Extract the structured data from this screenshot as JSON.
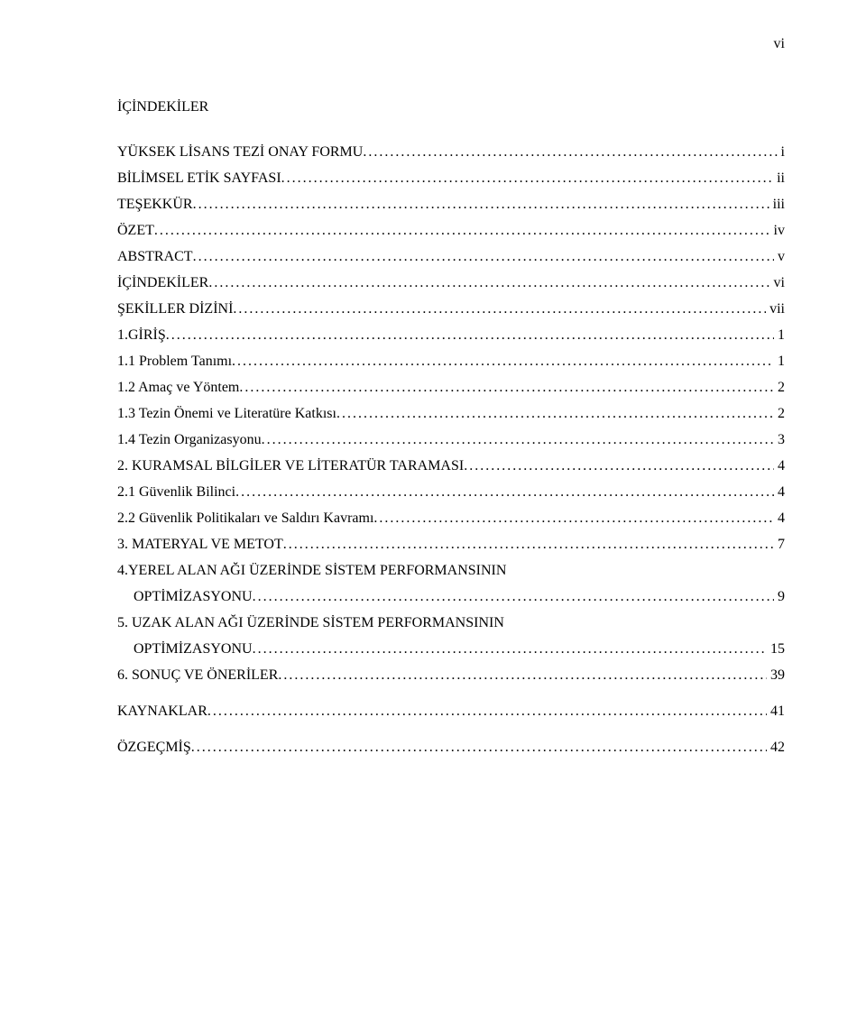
{
  "pageNumber": "vi",
  "title": "İÇİNDEKİLER",
  "entries": [
    {
      "label": "YÜKSEK LİSANS TEZİ ONAY FORMU",
      "page": "i",
      "indent": false,
      "gap": "none"
    },
    {
      "label": "BİLİMSEL ETİK SAYFASI",
      "page": "ii",
      "indent": false,
      "gap": "none"
    },
    {
      "label": "TEŞEKKÜR",
      "page": "iii",
      "indent": false,
      "gap": "none"
    },
    {
      "label": "ÖZET ",
      "page": "iv",
      "indent": false,
      "gap": "none"
    },
    {
      "label": "ABSTRACT ",
      "page": "v",
      "indent": false,
      "gap": "none"
    },
    {
      "label": "İÇİNDEKİLER",
      "page": "vi",
      "indent": false,
      "gap": "none"
    },
    {
      "label": "ŞEKİLLER DİZİNİ",
      "page": "vii",
      "indent": false,
      "gap": "none"
    },
    {
      "label": "1.GİRİŞ",
      "page": "1",
      "indent": false,
      "gap": "none"
    },
    {
      "label": "1.1 Problem Tanımı",
      "page": "1",
      "indent": false,
      "gap": "none"
    },
    {
      "label": "1.2 Amaç ve Yöntem",
      "page": "2",
      "indent": false,
      "gap": "none"
    },
    {
      "label": "1.3 Tezin Önemi ve Literatüre Katkısı",
      "page": "2",
      "indent": false,
      "gap": "none"
    },
    {
      "label": "1.4 Tezin Organizasyonu",
      "page": "3",
      "indent": false,
      "gap": "none"
    },
    {
      "label": "2. KURAMSAL BİLGİLER VE LİTERATÜR TARAMASI",
      "page": "4",
      "indent": false,
      "gap": "s"
    },
    {
      "label": "2.1 Güvenlik Bilinci",
      "page": "4",
      "indent": false,
      "gap": "none"
    },
    {
      "label": "2.2 Güvenlik Politikaları ve Saldırı Kavramı",
      "page": "4",
      "indent": false,
      "gap": "none"
    },
    {
      "label": "3. MATERYAL VE METOT",
      "page": "7",
      "indent": false,
      "gap": "s"
    },
    {
      "label": "4.YEREL ALAN AĞI ÜZERİNDE SİSTEM PERFORMANSININ",
      "page": "",
      "indent": false,
      "gap": "s",
      "noleader": true
    },
    {
      "label": "OPTİMİZASYONU",
      "page": "9",
      "indent": true,
      "gap": "none"
    },
    {
      "label": "5. UZAK ALAN AĞI ÜZERİNDE SİSTEM PERFORMANSININ",
      "page": "",
      "indent": false,
      "gap": "s",
      "noleader": true
    },
    {
      "label": "OPTİMİZASYONU",
      "page": "15",
      "indent": true,
      "gap": "none"
    },
    {
      "label": "6. SONUÇ VE ÖNERİLER",
      "page": "39",
      "indent": false,
      "gap": "s"
    },
    {
      "label": "KAYNAKLAR",
      "page": "41",
      "indent": false,
      "gap": "m"
    },
    {
      "label": "ÖZGEÇMİŞ",
      "page": "42",
      "indent": false,
      "gap": "m"
    }
  ],
  "style": {
    "background": "#ffffff",
    "text_color": "#000000",
    "font_family": "Times New Roman",
    "title_fontsize": 16,
    "body_fontsize": 16,
    "leader_char": "."
  }
}
